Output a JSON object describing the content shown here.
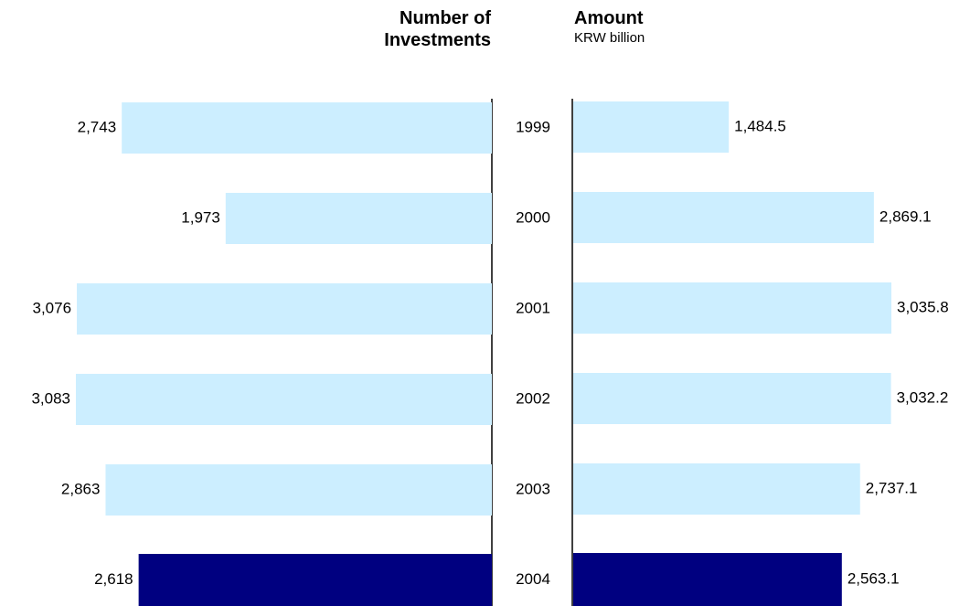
{
  "chart_data": [
    {
      "type": "bar",
      "orientation": "horizontal",
      "title": "Number of Investments",
      "categories": [
        "1999",
        "2000",
        "2001",
        "2002",
        "2003",
        "2004"
      ],
      "values": [
        2743,
        1973,
        3076,
        3083,
        2863,
        2618
      ],
      "value_labels": [
        "2,743",
        "1,973",
        "3,076",
        "3,083",
        "2,863",
        "2,618"
      ],
      "colors": [
        "#cceeff",
        "#cceeff",
        "#cceeff",
        "#cceeff",
        "#cceeff",
        "#000080"
      ]
    },
    {
      "type": "bar",
      "orientation": "horizontal",
      "title": "Amount",
      "subtitle": "KRW billion",
      "values": [
        1484.5,
        2869.1,
        3035.8,
        3032.2,
        2737.1,
        2563.1
      ],
      "value_labels": [
        "1,484.5",
        "2,869.1",
        "3,035.8",
        "3,032.2",
        "2,737.1",
        "2,563.1"
      ],
      "colors": [
        "#cceeff",
        "#cceeff",
        "#cceeff",
        "#cceeff",
        "#cceeff",
        "#000080"
      ]
    }
  ]
}
